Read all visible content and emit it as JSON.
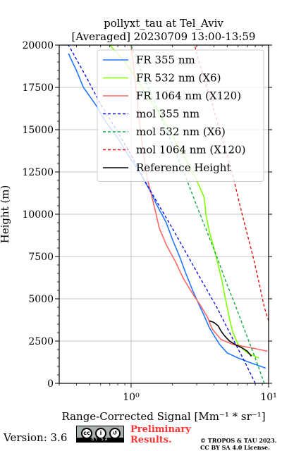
{
  "chart_data": {
    "type": "line",
    "title": "pollyxt_tau at Tel_Aviv",
    "subtitle": "[Averaged] 20230709 13:00-13:59",
    "xlabel": "Range-Corrected Signal [Mm⁻¹ * sr⁻¹]",
    "ylabel": "Height (m)",
    "x_scale": "log",
    "xlim": [
      0.3,
      10
    ],
    "ylim": [
      0,
      20000
    ],
    "x_ticks": [
      {
        "value": 1,
        "label": "10⁰"
      },
      {
        "value": 10,
        "label": "10¹"
      }
    ],
    "y_ticks": [
      0,
      2500,
      5000,
      7500,
      10000,
      12500,
      15000,
      17500,
      20000
    ],
    "grid": true,
    "legend_position": "top-right",
    "series": [
      {
        "name": "FR 355 nm",
        "color": "#1f77ff",
        "style": "solid",
        "points": [
          [
            9.5,
            900
          ],
          [
            7.5,
            1200
          ],
          [
            6.0,
            1500
          ],
          [
            5.0,
            1800
          ],
          [
            4.4,
            2300
          ],
          [
            4.1,
            2700
          ],
          [
            3.7,
            3300
          ],
          [
            3.4,
            4000
          ],
          [
            3.1,
            4700
          ],
          [
            2.8,
            5500
          ],
          [
            2.5,
            6500
          ],
          [
            2.25,
            7500
          ],
          [
            2.0,
            8500
          ],
          [
            1.8,
            9500
          ],
          [
            1.55,
            10500
          ],
          [
            1.35,
            11500
          ],
          [
            1.15,
            12500
          ],
          [
            0.95,
            13500
          ],
          [
            0.8,
            14500
          ],
          [
            0.65,
            15500
          ],
          [
            0.55,
            16500
          ],
          [
            0.45,
            17500
          ],
          [
            0.4,
            18500
          ],
          [
            0.35,
            19500
          ]
        ]
      },
      {
        "name": "FR 532 nm (X6)",
        "color": "#7fff00",
        "style": "solid",
        "points": [
          [
            8.5,
            1500
          ],
          [
            7.0,
            1800
          ],
          [
            6.0,
            2300
          ],
          [
            5.5,
            3000
          ],
          [
            5.2,
            3800
          ],
          [
            5.0,
            4500
          ],
          [
            4.8,
            5200
          ],
          [
            4.6,
            6000
          ],
          [
            4.3,
            7000
          ],
          [
            4.0,
            8000
          ],
          [
            3.7,
            9000
          ],
          [
            3.5,
            10000
          ],
          [
            3.4,
            11000
          ],
          [
            3.0,
            12000
          ],
          [
            2.6,
            13000
          ],
          [
            2.2,
            14000
          ],
          [
            1.9,
            15000
          ],
          [
            1.6,
            16000
          ],
          [
            1.3,
            17000
          ],
          [
            1.1,
            18000
          ],
          [
            0.9,
            19000
          ],
          [
            0.7,
            20000
          ]
        ]
      },
      {
        "name": "FR 1064 nm (X120)",
        "color": "#ff6666",
        "style": "solid",
        "points": [
          [
            9.8,
            1900
          ],
          [
            7.5,
            2100
          ],
          [
            5.5,
            2300
          ],
          [
            4.5,
            2600
          ],
          [
            3.9,
            3200
          ],
          [
            3.6,
            3900
          ],
          [
            3.2,
            4600
          ],
          [
            2.8,
            5300
          ],
          [
            2.4,
            6200
          ],
          [
            2.1,
            7200
          ],
          [
            1.8,
            8200
          ],
          [
            1.6,
            9200
          ],
          [
            1.5,
            10200
          ],
          [
            1.4,
            11200
          ],
          [
            1.3,
            12200
          ],
          [
            1.25,
            13200
          ],
          [
            1.2,
            14200
          ],
          [
            1.15,
            15500
          ],
          [
            1.1,
            17000
          ],
          [
            1.05,
            18500
          ],
          [
            1.0,
            20000
          ]
        ]
      },
      {
        "name": "mol 355 nm",
        "color": "#1111dd",
        "style": "dashed",
        "points": [
          [
            8.0,
            0
          ],
          [
            6.5,
            1500
          ],
          [
            5.2,
            3000
          ],
          [
            4.2,
            4500
          ],
          [
            3.3,
            6000
          ],
          [
            2.6,
            7500
          ],
          [
            2.05,
            9000
          ],
          [
            1.6,
            10500
          ],
          [
            1.25,
            12000
          ],
          [
            1.0,
            13500
          ],
          [
            0.78,
            15000
          ],
          [
            0.6,
            16500
          ],
          [
            0.48,
            18000
          ],
          [
            0.38,
            19500
          ],
          [
            0.35,
            20000
          ]
        ]
      },
      {
        "name": "mol 532 nm (X6)",
        "color": "#11aa44",
        "style": "dashed",
        "points": [
          [
            9.3,
            0
          ],
          [
            8.0,
            1500
          ],
          [
            6.8,
            3000
          ],
          [
            5.8,
            4500
          ],
          [
            4.9,
            6000
          ],
          [
            4.2,
            7500
          ],
          [
            3.55,
            9000
          ],
          [
            3.0,
            10500
          ],
          [
            2.55,
            12000
          ],
          [
            2.15,
            13500
          ],
          [
            1.8,
            15000
          ],
          [
            1.5,
            16500
          ],
          [
            1.25,
            18000
          ],
          [
            1.05,
            19500
          ],
          [
            1.0,
            20000
          ]
        ]
      },
      {
        "name": "mol 1064 nm (X120)",
        "color": "#dd1111",
        "style": "dashed",
        "points": [
          [
            10.0,
            3700
          ],
          [
            9.3,
            4500
          ],
          [
            8.5,
            6000
          ],
          [
            7.7,
            7500
          ],
          [
            6.9,
            9000
          ],
          [
            6.2,
            10500
          ],
          [
            5.6,
            12000
          ],
          [
            5.0,
            13500
          ],
          [
            4.4,
            15000
          ],
          [
            3.9,
            16500
          ],
          [
            3.4,
            18000
          ],
          [
            3.0,
            19500
          ],
          [
            2.9,
            20000
          ]
        ]
      },
      {
        "name": "Reference Height",
        "color": "#000000",
        "style": "solid",
        "points": [
          [
            3.7,
            3700
          ],
          [
            4.0,
            3600
          ],
          [
            4.3,
            3400
          ],
          [
            4.5,
            3100
          ],
          [
            4.8,
            2800
          ],
          [
            5.2,
            2500
          ],
          [
            5.7,
            2300
          ],
          [
            6.4,
            2100
          ],
          [
            7.0,
            1900
          ],
          [
            7.5,
            1600
          ]
        ]
      }
    ]
  },
  "footer": {
    "version": "Version: 3.6",
    "license_badge": "BY SA",
    "preliminary_line1": "Preliminary",
    "preliminary_line2": "Results.",
    "copyright_line1": "© TROPOS & TAU 2023.",
    "copyright_line2": "CC BY SA 4.0 License."
  }
}
